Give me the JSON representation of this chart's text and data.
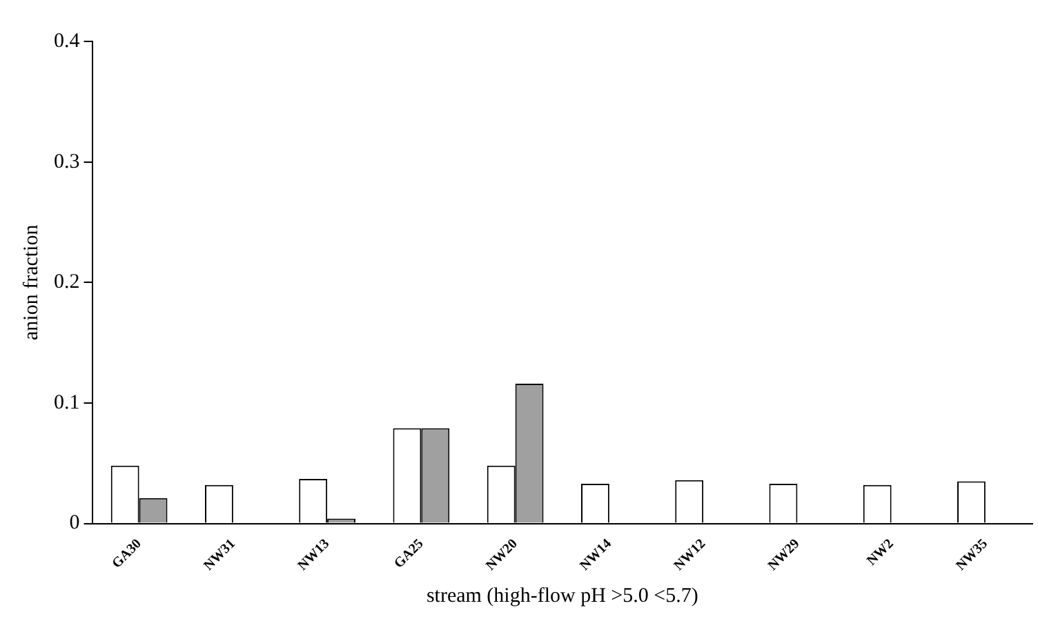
{
  "chart_data": {
    "type": "bar",
    "xlabel": "stream (high-flow pH >5.0 <5.7)",
    "ylabel": "anion fraction",
    "categories": [
      "GA30",
      "NW31",
      "NW13",
      "GA25",
      "NW20",
      "NW14",
      "NW12",
      "NW29",
      "NW2",
      "NW35"
    ],
    "series": [
      {
        "color": "#ffffff",
        "values": [
          0.048,
          0.032,
          0.037,
          0.079,
          0.048,
          0.033,
          0.036,
          0.033,
          0.032,
          0.035
        ]
      },
      {
        "color": "#a0a0a0",
        "values": [
          0.021,
          0,
          0.004,
          0.079,
          0.116,
          0,
          0,
          0,
          0,
          0
        ]
      }
    ],
    "ylim": [
      0,
      0.4
    ],
    "yticks": [
      0,
      0.1,
      0.2,
      0.3,
      0.4
    ],
    "grid": false,
    "legend": false
  }
}
